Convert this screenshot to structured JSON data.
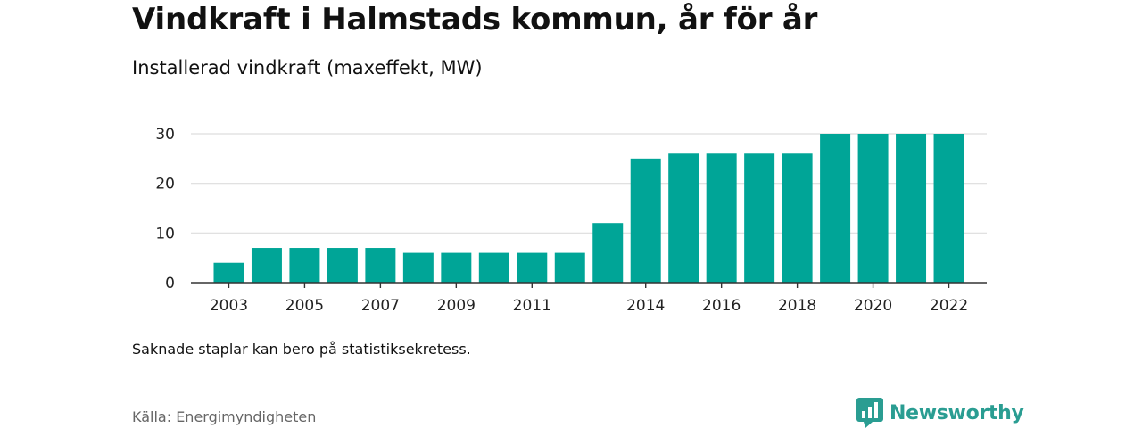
{
  "header": {
    "title": "Vindkraft i Halmstads kommun, år för år",
    "subtitle": "Installerad vindkraft (maxeffekt, MW)"
  },
  "footer": {
    "note": "Saknade staplar kan bero på statistiksekretess.",
    "source": "Källa: Energimyndigheten",
    "brand": "Newsworthy",
    "brand_icon": "newsworthy-chart-logo-icon"
  },
  "colors": {
    "bar": "#00a597",
    "grid": "#dddddd",
    "axis": "#333333",
    "brand": "#2a9d92"
  },
  "chart_data": {
    "type": "bar",
    "title": "Vindkraft i Halmstads kommun, år för år",
    "subtitle": "Installerad vindkraft (maxeffekt, MW)",
    "categories": [
      2003,
      2004,
      2005,
      2006,
      2007,
      2008,
      2009,
      2010,
      2011,
      2012,
      2013,
      2014,
      2015,
      2016,
      2017,
      2018,
      2019,
      2020,
      2021,
      2022
    ],
    "values": [
      4,
      7,
      7,
      7,
      7,
      6,
      6,
      6,
      6,
      6,
      12,
      25,
      26,
      26,
      26,
      26,
      30,
      30,
      30,
      30
    ],
    "xticks": [
      "2003",
      "2005",
      "2007",
      "2009",
      "2011",
      "2014",
      "2016",
      "2018",
      "2020",
      "2022"
    ],
    "yticks": [
      0,
      10,
      20,
      30
    ],
    "ylim": [
      0,
      30
    ],
    "xlabel": "",
    "ylabel": "",
    "grid": true,
    "legend": "none"
  }
}
